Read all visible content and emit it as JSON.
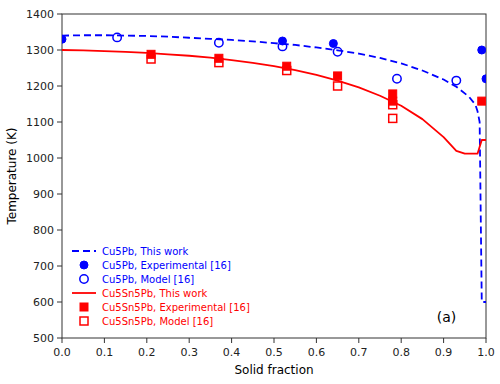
{
  "chart_data": {
    "type": "line",
    "title": "(a)",
    "x_label": "Solid fraction",
    "y_label": "Temperature (K)",
    "xlim": [
      0.0,
      1.0
    ],
    "ylim": [
      500,
      1400
    ],
    "xticks": [
      {
        "value": 0.0,
        "label": "0.0"
      },
      0.1,
      0.2,
      0.3,
      0.4,
      0.5,
      0.6,
      0.7,
      0.8,
      0.9,
      {
        "value": 1.0,
        "label": "1.0"
      }
    ],
    "yticks": [
      500,
      600,
      700,
      800,
      900,
      1000,
      1100,
      1200,
      1300,
      1400
    ],
    "grid": false,
    "legend": "lower left",
    "series": [
      {
        "name": "Cu5Pb, This work",
        "type": "line",
        "line_style": "dashed",
        "color": "#0000FF",
        "x": [
          0.0,
          0.05,
          0.1,
          0.15,
          0.2,
          0.25,
          0.3,
          0.35,
          0.4,
          0.45,
          0.5,
          0.55,
          0.6,
          0.65,
          0.7,
          0.75,
          0.8,
          0.85,
          0.9,
          0.93,
          0.96,
          0.975,
          0.98,
          0.985,
          0.99,
          0.995,
          1.0
        ],
        "values": [
          1340,
          1341,
          1341,
          1340,
          1339,
          1337,
          1334,
          1331,
          1328,
          1324,
          1319,
          1314,
          1307,
          1299,
          1290,
          1278,
          1263,
          1243,
          1218,
          1198,
          1170,
          1148,
          1130,
          1100,
          600,
          600,
          600
        ]
      },
      {
        "name": "Cu5Pb, Experimental [16]",
        "type": "scatter",
        "marker": "circle",
        "color": "#0000FF",
        "x": [
          0.0,
          0.52,
          0.64,
          0.99,
          1.0
        ],
        "values": [
          1330,
          1325,
          1318,
          1300,
          1220
        ]
      },
      {
        "name": "Cu5Pb, Model [16]",
        "type": "scatter",
        "marker": "open-circle",
        "color": "#0000FF",
        "x": [
          0.13,
          0.37,
          0.52,
          0.65,
          0.79,
          0.93
        ],
        "values": [
          1335,
          1320,
          1310,
          1295,
          1220,
          1215
        ]
      },
      {
        "name": "Cu5Sn5Pb, This work",
        "type": "line",
        "line_style": "solid",
        "color": "#FF0000",
        "x": [
          0.0,
          0.05,
          0.1,
          0.15,
          0.2,
          0.25,
          0.3,
          0.35,
          0.4,
          0.45,
          0.5,
          0.55,
          0.6,
          0.65,
          0.7,
          0.75,
          0.8,
          0.85,
          0.9,
          0.93,
          0.95,
          0.965,
          0.97,
          0.975,
          0.98,
          0.99,
          1.0
        ],
        "values": [
          1300,
          1299,
          1297,
          1295,
          1292,
          1288,
          1284,
          1279,
          1272,
          1264,
          1255,
          1244,
          1231,
          1215,
          1196,
          1173,
          1145,
          1108,
          1058,
          1020,
          1012,
          1012,
          1012,
          1012,
          1012,
          1050,
          1050
        ]
      },
      {
        "name": "Cu5Sn5Pb, Experimental [16]",
        "type": "scatter",
        "marker": "square",
        "color": "#FF0000",
        "x": [
          0.21,
          0.37,
          0.53,
          0.65,
          0.78,
          0.78,
          0.99
        ],
        "values": [
          1288,
          1277,
          1255,
          1228,
          1178,
          1158,
          1158
        ]
      },
      {
        "name": "Cu5Sn5Pb, Model [16]",
        "type": "scatter",
        "marker": "open-square",
        "color": "#FF0000",
        "x": [
          0.21,
          0.37,
          0.53,
          0.65,
          0.78,
          0.78
        ],
        "values": [
          1275,
          1265,
          1243,
          1200,
          1148,
          1110
        ]
      }
    ]
  }
}
